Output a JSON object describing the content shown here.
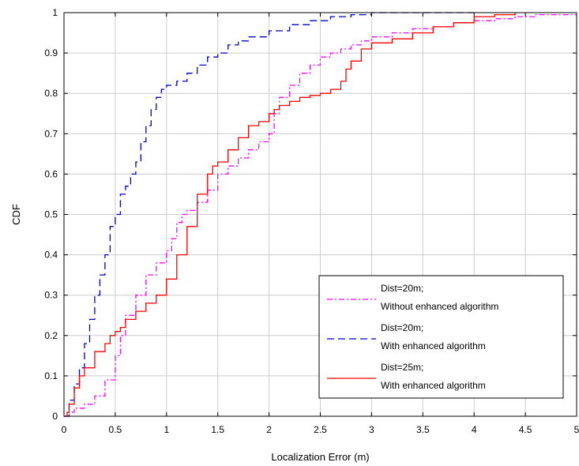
{
  "chart_data": {
    "type": "line",
    "title": "",
    "xlabel": "Localization Error (m)",
    "ylabel": "CDF",
    "xlim": [
      0,
      5
    ],
    "ylim": [
      0,
      1
    ],
    "x_ticks": [
      "0",
      "0.5",
      "1",
      "1.5",
      "2",
      "2.5",
      "3",
      "3.5",
      "4",
      "4.5",
      "5"
    ],
    "y_ticks": [
      "0",
      "0.1",
      "0.2",
      "0.3",
      "0.4",
      "0.5",
      "0.6",
      "0.7",
      "0.8",
      "0.9",
      "1"
    ],
    "grid": true,
    "legend_position": "bottom-right",
    "series": [
      {
        "label_line1": "Dist=20m;",
        "label_line2": "Without enhanced algorithm",
        "color": "#ff00ff",
        "style": "dashdot",
        "x": [
          0,
          0.05,
          0.1,
          0.2,
          0.3,
          0.4,
          0.5,
          0.55,
          0.6,
          0.7,
          0.8,
          0.9,
          1.0,
          1.05,
          1.1,
          1.15,
          1.2,
          1.3,
          1.4,
          1.5,
          1.6,
          1.7,
          1.8,
          1.9,
          2.0,
          2.05,
          2.1,
          2.2,
          2.3,
          2.4,
          2.5,
          2.6,
          2.7,
          2.8,
          2.9,
          3.0,
          3.2,
          3.4,
          3.6,
          3.8,
          4.0,
          4.2,
          4.4,
          4.6,
          5.0
        ],
        "y": [
          0,
          0.01,
          0.02,
          0.03,
          0.05,
          0.09,
          0.15,
          0.2,
          0.25,
          0.3,
          0.35,
          0.38,
          0.41,
          0.44,
          0.48,
          0.5,
          0.51,
          0.53,
          0.56,
          0.6,
          0.62,
          0.64,
          0.66,
          0.68,
          0.7,
          0.75,
          0.79,
          0.82,
          0.85,
          0.87,
          0.89,
          0.9,
          0.91,
          0.92,
          0.93,
          0.94,
          0.95,
          0.96,
          0.965,
          0.975,
          0.98,
          0.985,
          0.99,
          0.995,
          0.995
        ]
      },
      {
        "label_line1": "Dist=20m;",
        "label_line2": "With enhanced algorithm",
        "color": "#0000cc",
        "style": "dashed",
        "x": [
          0,
          0.05,
          0.1,
          0.15,
          0.2,
          0.25,
          0.3,
          0.35,
          0.4,
          0.45,
          0.5,
          0.55,
          0.6,
          0.65,
          0.7,
          0.75,
          0.8,
          0.85,
          0.9,
          0.95,
          1.0,
          1.1,
          1.2,
          1.3,
          1.4,
          1.5,
          1.6,
          1.7,
          1.8,
          2.0,
          2.2,
          2.4,
          2.6,
          2.8,
          3.0,
          3.5,
          4.0
        ],
        "y": [
          0,
          0.04,
          0.08,
          0.12,
          0.18,
          0.24,
          0.3,
          0.35,
          0.4,
          0.47,
          0.5,
          0.55,
          0.57,
          0.6,
          0.63,
          0.68,
          0.72,
          0.76,
          0.79,
          0.81,
          0.82,
          0.83,
          0.85,
          0.87,
          0.89,
          0.9,
          0.92,
          0.93,
          0.94,
          0.955,
          0.97,
          0.98,
          0.99,
          0.995,
          1.0,
          1.0,
          1.0
        ]
      },
      {
        "label_line1": "Dist=25m;",
        "label_line2": "With enhanced algorithm",
        "color": "#ff0000",
        "style": "solid",
        "x": [
          0,
          0.03,
          0.05,
          0.1,
          0.15,
          0.2,
          0.3,
          0.4,
          0.45,
          0.5,
          0.55,
          0.6,
          0.7,
          0.8,
          0.9,
          1.0,
          1.1,
          1.2,
          1.3,
          1.4,
          1.45,
          1.5,
          1.6,
          1.7,
          1.8,
          1.9,
          2.0,
          2.05,
          2.1,
          2.2,
          2.3,
          2.4,
          2.5,
          2.6,
          2.7,
          2.75,
          2.8,
          2.9,
          3.0,
          3.2,
          3.4,
          3.6,
          3.8,
          4.0,
          4.2,
          4.4
        ],
        "y": [
          0,
          0.01,
          0.03,
          0.07,
          0.1,
          0.12,
          0.16,
          0.18,
          0.2,
          0.21,
          0.22,
          0.24,
          0.26,
          0.28,
          0.3,
          0.34,
          0.4,
          0.47,
          0.55,
          0.6,
          0.62,
          0.63,
          0.66,
          0.69,
          0.72,
          0.73,
          0.75,
          0.76,
          0.77,
          0.78,
          0.79,
          0.795,
          0.8,
          0.81,
          0.83,
          0.86,
          0.88,
          0.91,
          0.925,
          0.935,
          0.95,
          0.965,
          0.975,
          0.99,
          0.995,
          1.0
        ]
      }
    ]
  }
}
